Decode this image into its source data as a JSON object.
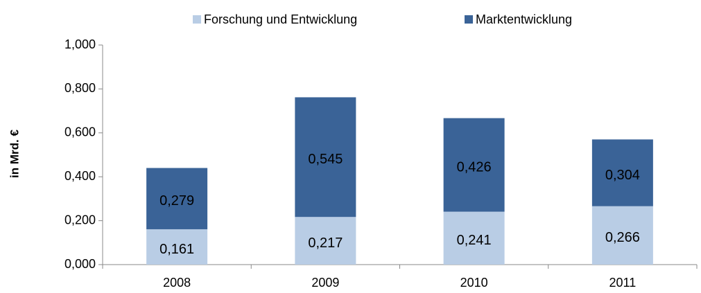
{
  "chart_data": {
    "type": "stacked_bar",
    "y_label": "in Mrd. €",
    "categories": [
      "2008",
      "2009",
      "2010",
      "2011"
    ],
    "series": [
      {
        "name": "Forschung und Entwicklung",
        "color": "#b9cde5",
        "values": [
          0.161,
          0.217,
          0.241,
          0.266
        ],
        "value_labels": [
          "0,161",
          "0,217",
          "0,241",
          "0,266"
        ]
      },
      {
        "name": "Marktentwicklung",
        "color": "#3a6397",
        "values": [
          0.279,
          0.545,
          0.426,
          0.304
        ],
        "value_labels": [
          "0,279",
          "0,545",
          "0,426",
          "0,304"
        ]
      }
    ],
    "ylim": [
      0,
      1
    ],
    "yticks": [
      {
        "value": 0,
        "label": "0,000"
      },
      {
        "value": 0.2,
        "label": "0,200"
      },
      {
        "value": 0.4,
        "label": "0,400"
      },
      {
        "value": 0.6,
        "label": "0,600"
      },
      {
        "value": 0.8,
        "label": "0,800"
      },
      {
        "value": 1,
        "label": "1,000"
      }
    ],
    "grid": false,
    "legend": "top"
  }
}
